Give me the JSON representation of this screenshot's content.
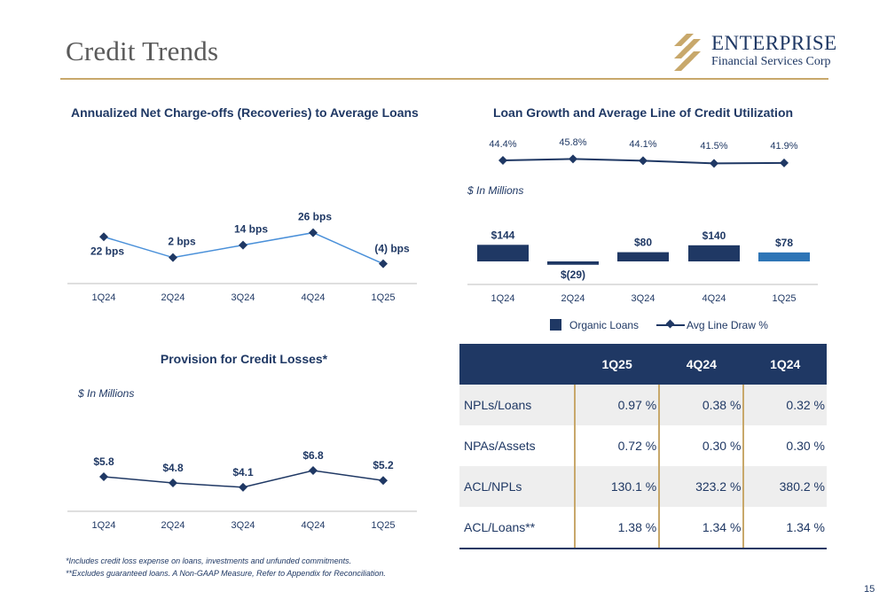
{
  "page": {
    "title": "Credit Trends",
    "page_number": "15",
    "logo": {
      "line1": "ENTERPRISE",
      "line2": "Financial Services Corp"
    },
    "footnotes": [
      "*Includes credit loss expense on loans, investments and unfunded commitments.",
      "**Excludes guaranteed loans. A Non-GAAP Measure, Refer to Appendix for Reconciliation."
    ],
    "colors": {
      "navy": "#1f3864",
      "gold": "#c8a86b",
      "highlight_blue": "#2e75b6",
      "shade": "#eeeeee"
    }
  },
  "charts": {
    "nco": {
      "title": "Annualized Net Charge-offs (Recoveries) to Average Loans"
    },
    "loan": {
      "title": "Loan Growth and Average Line of Credit Utilization",
      "units": "$ In Millions",
      "legend": {
        "bars": "Organic Loans",
        "line": "Avg Line Draw %"
      }
    },
    "prov": {
      "title": "Provision for Credit Losses*",
      "units": "$ In Millions"
    }
  },
  "chart_data": [
    {
      "type": "line",
      "title": "Annualized Net Charge-offs (Recoveries) to Average Loans",
      "categories": [
        "1Q24",
        "2Q24",
        "3Q24",
        "4Q24",
        "1Q25"
      ],
      "series": [
        {
          "values": [
            22,
            2,
            14,
            26,
            -4
          ]
        }
      ],
      "unit": "bps",
      "data_labels": [
        "22 bps",
        "2 bps",
        "14 bps",
        "26 bps",
        "(4) bps"
      ]
    },
    {
      "type": "bar",
      "title": "Loan Growth and Average Line of Credit Utilization",
      "categories": [
        "1Q24",
        "2Q24",
        "3Q24",
        "4Q24",
        "1Q25"
      ],
      "series": [
        {
          "name": "Organic Loans",
          "values": [
            144,
            -29,
            80,
            140,
            78
          ],
          "data_labels": [
            "$144",
            "$(29)",
            "$80",
            "$140",
            "$78"
          ]
        },
        {
          "name": "Avg Line Draw %",
          "type": "line",
          "values": [
            44.4,
            45.8,
            44.1,
            41.5,
            41.9
          ],
          "data_labels": [
            "44.4%",
            "45.8%",
            "44.1%",
            "41.5%",
            "41.9%"
          ]
        }
      ],
      "ylabel": "$ In Millions",
      "legend": "bottom"
    },
    {
      "type": "line",
      "title": "Provision for Credit Losses*",
      "categories": [
        "1Q24",
        "2Q24",
        "3Q24",
        "4Q24",
        "1Q25"
      ],
      "series": [
        {
          "values": [
            5.8,
            4.8,
            4.1,
            6.8,
            5.2
          ]
        }
      ],
      "data_labels": [
        "$5.8",
        "$4.8",
        "$4.1",
        "$6.8",
        "$5.2"
      ],
      "ylabel": "$ In Millions"
    },
    {
      "type": "table",
      "columns": [
        "",
        "1Q25",
        "4Q24",
        "1Q24"
      ],
      "rows": [
        [
          "NPLs/Loans",
          "0.97 %",
          "0.38 %",
          "0.32 %"
        ],
        [
          "NPAs/Assets",
          "0.72 %",
          "0.30 %",
          "0.30 %"
        ],
        [
          "ACL/NPLs",
          "130.1 %",
          "323.2 %",
          "380.2 %"
        ],
        [
          "ACL/Loans**",
          "1.38 %",
          "1.34 %",
          "1.34 %"
        ]
      ]
    }
  ]
}
